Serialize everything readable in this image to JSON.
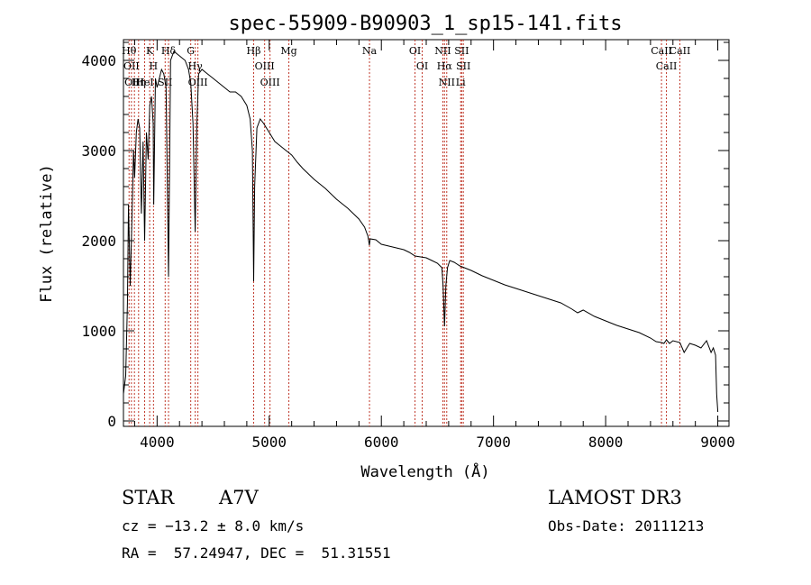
{
  "chart_data": {
    "type": "line",
    "title": "spec-55909-B90903_1_sp15-141.fits",
    "xlabel": "Wavelength (Å)",
    "ylabel": "Flux (relative)",
    "xlim": [
      3700,
      9100
    ],
    "ylim": [
      -60,
      4230
    ],
    "xticks": [
      4000,
      5000,
      6000,
      7000,
      8000,
      9000
    ],
    "yticks": [
      0,
      1000,
      2000,
      3000,
      4000
    ],
    "grid": false,
    "series": [
      {
        "name": "flux",
        "x": [
          3700,
          3720,
          3735,
          3745,
          3760,
          3775,
          3790,
          3800,
          3815,
          3830,
          3845,
          3860,
          3875,
          3889,
          3905,
          3920,
          3935,
          3950,
          3965,
          3970,
          3985,
          4000,
          4020,
          4040,
          4060,
          4080,
          4102,
          4120,
          4150,
          4200,
          4250,
          4280,
          4300,
          4320,
          4340,
          4355,
          4370,
          4400,
          4450,
          4500,
          4550,
          4600,
          4650,
          4700,
          4750,
          4800,
          4830,
          4850,
          4861,
          4870,
          4890,
          4920,
          4950,
          5000,
          5050,
          5100,
          5150,
          5200,
          5250,
          5300,
          5400,
          5500,
          5600,
          5700,
          5800,
          5850,
          5880,
          5893,
          5900,
          5950,
          6000,
          6100,
          6200,
          6250,
          6300,
          6400,
          6450,
          6500,
          6540,
          6550,
          6563,
          6575,
          6590,
          6610,
          6650,
          6700,
          6800,
          6900,
          7000,
          7100,
          7200,
          7400,
          7600,
          7700,
          7750,
          7800,
          7900,
          8000,
          8100,
          8200,
          8300,
          8400,
          8450,
          8498,
          8520,
          8542,
          8570,
          8600,
          8662,
          8700,
          8750,
          8800,
          8850,
          8900,
          8940,
          8960,
          8980,
          8990,
          9000
        ],
        "values": [
          300,
          500,
          1300,
          2400,
          1500,
          2200,
          3000,
          2700,
          3200,
          3350,
          3250,
          2300,
          3100,
          2000,
          3200,
          2900,
          3500,
          3600,
          3300,
          2400,
          3800,
          3700,
          3800,
          3900,
          3850,
          3700,
          1600,
          4000,
          4100,
          4050,
          4000,
          3900,
          3750,
          3300,
          2100,
          3300,
          3850,
          3900,
          3850,
          3800,
          3750,
          3700,
          3650,
          3650,
          3600,
          3500,
          3350,
          3000,
          1550,
          2600,
          3250,
          3350,
          3300,
          3200,
          3100,
          3050,
          3000,
          2950,
          2870,
          2800,
          2680,
          2580,
          2460,
          2360,
          2240,
          2150,
          2050,
          1950,
          2020,
          2010,
          1960,
          1930,
          1900,
          1870,
          1830,
          1810,
          1780,
          1750,
          1700,
          1500,
          1050,
          1500,
          1700,
          1780,
          1760,
          1720,
          1670,
          1610,
          1560,
          1510,
          1470,
          1390,
          1310,
          1240,
          1200,
          1230,
          1160,
          1110,
          1060,
          1020,
          980,
          920,
          880,
          870,
          860,
          900,
          860,
          890,
          870,
          760,
          860,
          840,
          810,
          890,
          760,
          810,
          730,
          300,
          100
        ],
        "color": "#000000"
      }
    ],
    "line_labels": [
      {
        "wavelength": 3750,
        "text": "Hθ"
      },
      {
        "wavelength": 3771,
        "text": "OII"
      },
      {
        "wavelength": 3798,
        "text": "OIII"
      },
      {
        "wavelength": 3835,
        "text": "Hη"
      },
      {
        "wavelength": 3889,
        "text": "HeI"
      },
      {
        "wavelength": 3934,
        "text": "K"
      },
      {
        "wavelength": 3968,
        "text": "H"
      },
      {
        "wavelength": 4072,
        "text": "SII"
      },
      {
        "wavelength": 4102,
        "text": "Hδ"
      },
      {
        "wavelength": 4300,
        "text": "G"
      },
      {
        "wavelength": 4340,
        "text": "Hγ"
      },
      {
        "wavelength": 4364,
        "text": "OIII"
      },
      {
        "wavelength": 4861,
        "text": "Hβ"
      },
      {
        "wavelength": 4959,
        "text": "OIII"
      },
      {
        "wavelength": 5007,
        "text": "OIII"
      },
      {
        "wavelength": 5175,
        "text": "Mg"
      },
      {
        "wavelength": 5894,
        "text": "Na"
      },
      {
        "wavelength": 6300,
        "text": "OI"
      },
      {
        "wavelength": 6364,
        "text": "OI"
      },
      {
        "wavelength": 6548,
        "text": "NII"
      },
      {
        "wavelength": 6563,
        "text": "Hα"
      },
      {
        "wavelength": 6583,
        "text": "NII"
      },
      {
        "wavelength": 6707,
        "text": "Li"
      },
      {
        "wavelength": 6716,
        "text": "SII"
      },
      {
        "wavelength": 6731,
        "text": "SII"
      },
      {
        "wavelength": 8498,
        "text": "CaII"
      },
      {
        "wavelength": 8542,
        "text": "CaII"
      },
      {
        "wavelength": 8662,
        "text": "CaII"
      }
    ]
  },
  "info": {
    "object_class": "STAR",
    "subclass": "A7V",
    "survey": "LAMOST DR3",
    "cz": "cz = −13.2 ± 8.0 km/s",
    "obs_date": "Obs-Date: 20111213",
    "coords": "RA =  57.24947, DEC =  51.31551"
  }
}
